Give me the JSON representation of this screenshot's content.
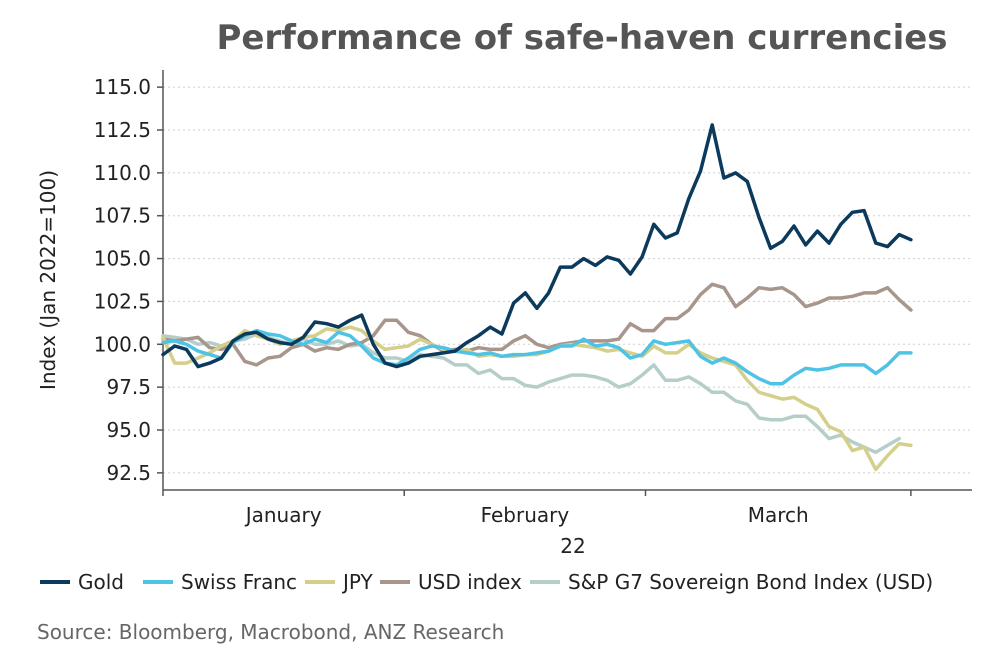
{
  "chart_data": {
    "type": "line",
    "title": "Performance of safe-haven currencies",
    "ylabel": "Index (Jan 2022=100)",
    "xlabel_year": "22",
    "source": "Source:  Bloomberg, Macrobond, ANZ Research",
    "ylim": [
      91.5,
      116.0
    ],
    "yticks": [
      92.5,
      95.0,
      97.5,
      100.0,
      102.5,
      105.0,
      107.5,
      110.0,
      112.5,
      115.0
    ],
    "ytick_labels": [
      "92.5",
      "95.0",
      "97.5",
      "100.0",
      "102.5",
      "105.0",
      "107.5",
      "110.0",
      "112.5",
      "115.0"
    ],
    "xlim": [
      0,
      62
    ],
    "x_month_labels": [
      {
        "label": "January",
        "x": 10
      },
      {
        "label": "February",
        "x": 30
      },
      {
        "label": "March",
        "x": 51
      }
    ],
    "x_month_boundaries": [
      0,
      20,
      40,
      62
    ],
    "grid": {
      "horizontal": true,
      "vertical": false
    },
    "legend_position": "bottom",
    "series": [
      {
        "name": "Gold",
        "color": "#0b3a5c",
        "values": [
          99.4,
          99.9,
          99.7,
          98.7,
          98.9,
          99.2,
          100.2,
          100.6,
          100.7,
          100.3,
          100.1,
          100.0,
          100.4,
          101.3,
          101.2,
          101.0,
          101.4,
          101.7,
          100.0,
          98.9,
          98.7,
          98.9,
          99.3,
          99.4,
          99.5,
          99.6,
          100.1,
          100.5,
          101.0,
          100.6,
          102.4,
          103.0,
          102.1,
          103.0,
          104.5,
          104.5,
          105.0,
          104.6,
          105.1,
          104.9,
          104.1,
          105.1,
          107.0,
          106.2,
          106.5,
          108.5,
          110.1,
          112.8,
          109.7,
          110.0,
          109.5,
          107.4,
          105.6,
          106.0,
          106.9,
          105.8,
          106.6,
          105.9,
          107.0,
          107.7,
          107.8,
          105.9,
          105.7,
          106.4,
          106.1
        ],
        "x": [
          0,
          1,
          2,
          3,
          4,
          5,
          6,
          7,
          8,
          9,
          10,
          11,
          12,
          13,
          14,
          15,
          16,
          17,
          18,
          19,
          20,
          21,
          22,
          23,
          24,
          25,
          26,
          27,
          28,
          29,
          30,
          31,
          32,
          33,
          34,
          35,
          36,
          37,
          38,
          39,
          40,
          41,
          42,
          43,
          44,
          45,
          46,
          47,
          48,
          49,
          50,
          51,
          52,
          53,
          54,
          55,
          56,
          57,
          58,
          59,
          60,
          61,
          62,
          63,
          64
        ]
      },
      {
        "name": "Swiss Franc",
        "color": "#4ec3e6",
        "values": [
          100.1,
          100.2,
          100.0,
          99.6,
          99.4,
          99.2,
          100.1,
          100.5,
          100.8,
          100.6,
          100.5,
          100.2,
          100.0,
          100.3,
          100.1,
          100.7,
          100.5,
          99.9,
          99.2,
          98.9,
          98.8,
          99.2,
          99.7,
          99.9,
          99.8,
          99.6,
          99.5,
          99.4,
          99.5,
          99.3,
          99.4,
          99.4,
          99.5,
          99.6,
          99.9,
          99.9,
          100.3,
          99.9,
          100.0,
          99.8,
          99.2,
          99.4,
          100.2,
          100.0,
          100.1,
          100.2,
          99.3,
          98.9,
          99.2,
          98.9,
          98.4,
          98.0,
          97.7,
          97.7,
          98.2,
          98.6,
          98.5,
          98.6,
          98.8,
          98.8,
          98.8,
          98.3,
          98.8,
          99.5,
          99.5
        ],
        "x": [
          0,
          1,
          2,
          3,
          4,
          5,
          6,
          7,
          8,
          9,
          10,
          11,
          12,
          13,
          14,
          15,
          16,
          17,
          18,
          19,
          20,
          21,
          22,
          23,
          24,
          25,
          26,
          27,
          28,
          29,
          30,
          31,
          32,
          33,
          34,
          35,
          36,
          37,
          38,
          39,
          40,
          41,
          42,
          43,
          44,
          45,
          46,
          47,
          48,
          49,
          50,
          51,
          52,
          53,
          54,
          55,
          56,
          57,
          58,
          59,
          60,
          61,
          62,
          63,
          64
        ]
      },
      {
        "name": "JPY",
        "color": "#d4cf8a",
        "values": [
          100.4,
          98.9,
          98.9,
          99.2,
          99.5,
          99.9,
          100.2,
          100.8,
          100.5,
          100.3,
          100.0,
          100.2,
          100.4,
          100.5,
          100.9,
          100.8,
          101.0,
          100.8,
          100.2,
          99.7,
          99.8,
          99.9,
          100.3,
          100.0,
          99.7,
          99.6,
          99.7,
          99.3,
          99.4,
          99.3,
          99.3,
          99.4,
          99.4,
          99.6,
          99.9,
          100.0,
          99.9,
          99.8,
          99.6,
          99.7,
          99.5,
          99.3,
          99.9,
          99.5,
          99.5,
          100.0,
          99.5,
          99.2,
          99.0,
          98.8,
          97.9,
          97.2,
          97.0,
          96.8,
          96.9,
          96.5,
          96.2,
          95.2,
          94.9,
          93.8,
          94.0,
          92.7,
          93.5,
          94.2,
          94.1
        ],
        "x": [
          0,
          1,
          2,
          3,
          4,
          5,
          6,
          7,
          8,
          9,
          10,
          11,
          12,
          13,
          14,
          15,
          16,
          17,
          18,
          19,
          20,
          21,
          22,
          23,
          24,
          25,
          26,
          27,
          28,
          29,
          30,
          31,
          32,
          33,
          34,
          35,
          36,
          37,
          38,
          39,
          40,
          41,
          42,
          43,
          44,
          45,
          46,
          47,
          48,
          49,
          50,
          51,
          52,
          53,
          54,
          55,
          56,
          57,
          58,
          59,
          60,
          61,
          62,
          63,
          64
        ]
      },
      {
        "name": "USD index",
        "color": "#a8968c",
        "values": [
          100.3,
          100.2,
          100.3,
          100.4,
          99.8,
          99.7,
          100.0,
          99.0,
          98.8,
          99.2,
          99.3,
          99.8,
          100.0,
          99.6,
          99.8,
          99.7,
          100.0,
          100.1,
          100.5,
          101.4,
          101.4,
          100.7,
          100.5,
          100.0,
          99.6,
          99.7,
          99.6,
          99.8,
          99.7,
          99.7,
          100.2,
          100.5,
          100.0,
          99.8,
          100.0,
          100.1,
          100.2,
          100.2,
          100.2,
          100.3,
          101.2,
          100.8,
          100.8,
          101.5,
          101.5,
          102.0,
          102.9,
          103.5,
          103.3,
          102.2,
          102.7,
          103.3,
          103.2,
          103.3,
          102.9,
          102.2,
          102.4,
          102.7,
          102.7,
          102.8,
          103.0,
          103.0,
          103.3,
          102.6,
          102.0
        ],
        "x": [
          0,
          1,
          2,
          3,
          4,
          5,
          6,
          7,
          8,
          9,
          10,
          11,
          12,
          13,
          14,
          15,
          16,
          17,
          18,
          19,
          20,
          21,
          22,
          23,
          24,
          25,
          26,
          27,
          28,
          29,
          30,
          31,
          32,
          33,
          34,
          35,
          36,
          37,
          38,
          39,
          40,
          41,
          42,
          43,
          44,
          45,
          46,
          47,
          48,
          49,
          50,
          51,
          52,
          53,
          54,
          55,
          56,
          57,
          58,
          59,
          60,
          61,
          62,
          63,
          64
        ]
      },
      {
        "name": "S&P G7 Sovereign Bond Index (USD)",
        "color": "#b5cec9",
        "values": [
          100.5,
          100.4,
          100.3,
          100.0,
          100.1,
          99.9,
          100.2,
          100.3,
          100.6,
          100.4,
          100.2,
          100.0,
          100.3,
          100.0,
          100.0,
          100.2,
          99.9,
          100.0,
          99.5,
          99.2,
          99.2,
          99.0,
          99.4,
          99.3,
          99.2,
          98.8,
          98.8,
          98.3,
          98.5,
          98.0,
          98.0,
          97.6,
          97.5,
          97.8,
          98.0,
          98.2,
          98.2,
          98.1,
          97.9,
          97.5,
          97.7,
          98.2,
          98.8,
          97.9,
          97.9,
          98.1,
          97.7,
          97.2,
          97.2,
          96.7,
          96.5,
          95.7,
          95.6,
          95.6,
          95.8,
          95.8,
          95.2,
          94.5,
          94.7,
          94.3,
          94.0,
          93.7,
          94.1,
          94.5
        ],
        "x": [
          0,
          1,
          2,
          3,
          4,
          5,
          6,
          7,
          8,
          9,
          10,
          11,
          12,
          13,
          14,
          15,
          16,
          17,
          18,
          19,
          20,
          21,
          22,
          23,
          24,
          25,
          26,
          27,
          28,
          29,
          30,
          31,
          32,
          33,
          34,
          35,
          36,
          37,
          38,
          39,
          40,
          41,
          42,
          43,
          44,
          45,
          46,
          47,
          48,
          49,
          50,
          51,
          52,
          53,
          54,
          55,
          56,
          57,
          58,
          59,
          60,
          61,
          62,
          63
        ]
      }
    ]
  }
}
